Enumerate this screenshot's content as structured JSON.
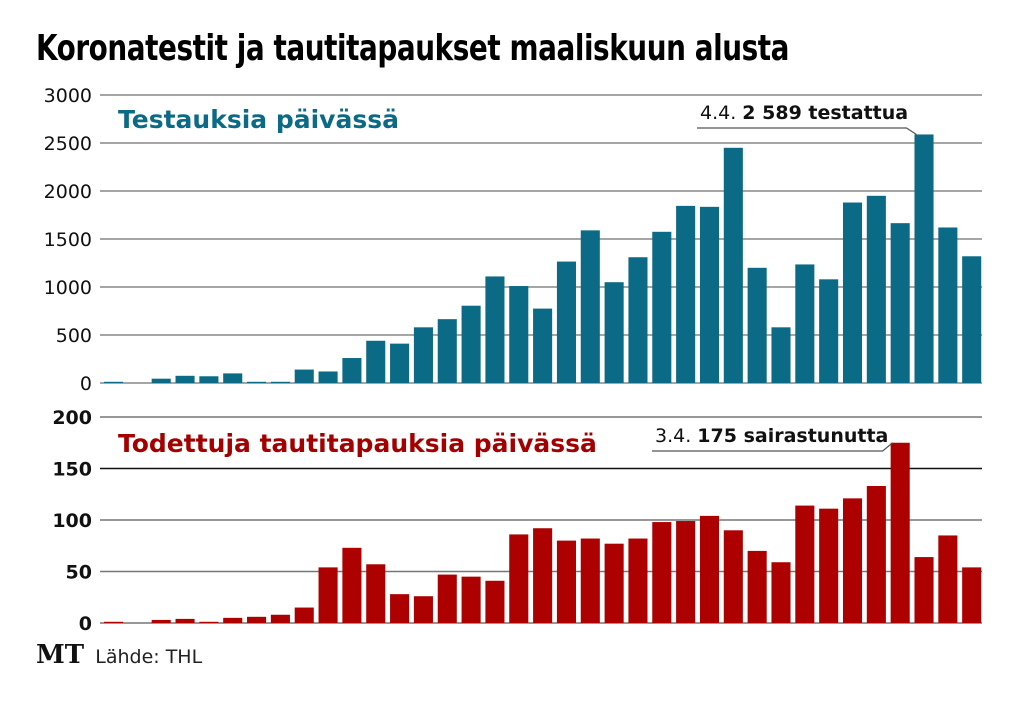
{
  "title": "Koronatestit ja tautitapaukset maaliskuun alusta",
  "footer": {
    "logo": "MT",
    "source": "Lähde: THL"
  },
  "colors": {
    "tests": "#0b6a85",
    "cases": "#ad0000",
    "tests_title": "#0b6a85",
    "cases_title": "#a50000"
  },
  "chart_data": [
    {
      "type": "bar",
      "title": "Testauksia päivässä",
      "xlabel": "",
      "ylabel": "",
      "ylim": [
        0,
        3000
      ],
      "yticks": [
        0,
        500,
        1000,
        1500,
        2000,
        2500,
        3000
      ],
      "grid": true,
      "annotation": {
        "index": 34,
        "prefix": "4.4.",
        "value_text": "2 589 testattua"
      },
      "values": [
        10,
        0,
        45,
        75,
        70,
        100,
        10,
        10,
        140,
        120,
        260,
        440,
        410,
        580,
        665,
        805,
        1110,
        1010,
        775,
        1265,
        1590,
        1050,
        1310,
        1575,
        1845,
        1835,
        2450,
        1200,
        580,
        1235,
        1080,
        1880,
        1950,
        1665,
        2589,
        1620,
        1320
      ]
    },
    {
      "type": "bar",
      "title": "Todettuja tautitapauksia päivässä",
      "xlabel": "",
      "ylabel": "",
      "ylim": [
        0,
        200
      ],
      "yticks": [
        0,
        50,
        100,
        150,
        200
      ],
      "grid": true,
      "annotation": {
        "index": 33,
        "prefix": "3.4.",
        "value_text": "175 sairastunutta"
      },
      "values": [
        1,
        0,
        3,
        4,
        1,
        5,
        6,
        8,
        15,
        54,
        73,
        57,
        28,
        26,
        47,
        45,
        41,
        86,
        92,
        80,
        82,
        77,
        82,
        98,
        99,
        104,
        90,
        70,
        59,
        114,
        111,
        121,
        133,
        175,
        64,
        85,
        54
      ]
    }
  ]
}
